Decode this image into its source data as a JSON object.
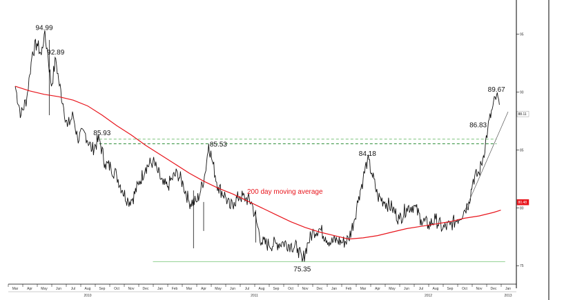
{
  "chart_data": {
    "type": "line",
    "title": "",
    "xlabel": "",
    "ylabel": "",
    "ylim": [
      74,
      97
    ],
    "grid": false,
    "y_ticks": [
      "95",
      "90",
      "85",
      "80",
      "75"
    ],
    "y_tick_values": [
      95,
      90,
      85,
      80,
      75
    ],
    "months": [
      "Mar",
      "Apr",
      "May",
      "Jun",
      "Jul",
      "Aug",
      "Sep",
      "Oct",
      "Nov",
      "Dec",
      "Jan",
      "Feb",
      "Mar",
      "Apr",
      "May",
      "Jun",
      "Jul",
      "Aug",
      "Sep",
      "Oct",
      "Nov",
      "Dec",
      "Jan",
      "Feb",
      "Mar",
      "Apr",
      "May",
      "Jun",
      "Jul",
      "Aug",
      "Sep",
      "Oct",
      "Nov",
      "Dec",
      "Jan"
    ],
    "years": [
      {
        "label": "2010",
        "at_month": 5
      },
      {
        "label": "2011",
        "at_month": 16.5
      },
      {
        "label": "2012",
        "at_month": 28.5
      },
      {
        "label": "2013",
        "at_month": 34
      }
    ],
    "series": [
      {
        "values_anchor": [
          [
            0,
            90.5
          ],
          [
            0.4,
            88.0
          ],
          [
            0.8,
            89.5
          ],
          [
            1.0,
            91.5
          ],
          [
            1.2,
            93.5
          ],
          [
            1.5,
            94.2
          ],
          [
            1.8,
            93.2
          ],
          [
            2.0,
            94.99
          ],
          [
            2.2,
            93.8
          ],
          [
            2.5,
            90.5
          ],
          [
            2.8,
            92.89
          ],
          [
            3.0,
            91.0
          ],
          [
            3.3,
            89.0
          ],
          [
            3.6,
            87.0
          ],
          [
            4.0,
            88.0
          ],
          [
            4.3,
            86.0
          ],
          [
            4.8,
            86.5
          ],
          [
            5.3,
            85.0
          ],
          [
            5.8,
            85.93
          ],
          [
            6.2,
            83.8
          ],
          [
            6.6,
            83.5
          ],
          [
            7.0,
            82.8
          ],
          [
            7.4,
            81.5
          ],
          [
            7.8,
            80.6
          ],
          [
            8.1,
            80.8
          ],
          [
            8.5,
            82.0
          ],
          [
            9.0,
            83.5
          ],
          [
            9.5,
            84.0
          ],
          [
            9.8,
            83.2
          ],
          [
            10.2,
            82.0
          ],
          [
            10.5,
            81.8
          ],
          [
            10.8,
            82.5
          ],
          [
            11.2,
            83.0
          ],
          [
            11.6,
            82.0
          ],
          [
            12.0,
            80.5
          ],
          [
            12.5,
            80.5
          ],
          [
            12.8,
            81.5
          ],
          [
            13.1,
            83.0
          ],
          [
            13.35,
            85.53
          ],
          [
            13.6,
            84.0
          ],
          [
            14.0,
            81.8
          ],
          [
            14.5,
            81.0
          ],
          [
            14.8,
            80.0
          ],
          [
            15.1,
            80.5
          ],
          [
            15.5,
            81.0
          ],
          [
            15.9,
            80.8
          ],
          [
            16.3,
            80.5
          ],
          [
            16.7,
            78.5
          ],
          [
            17.0,
            77.0
          ],
          [
            17.5,
            76.8
          ],
          [
            18.0,
            76.9
          ],
          [
            18.5,
            77.0
          ],
          [
            19.0,
            76.8
          ],
          [
            19.5,
            76.5
          ],
          [
            19.8,
            75.35
          ],
          [
            20.2,
            77.0
          ],
          [
            20.6,
            78.0
          ],
          [
            21.0,
            78.2
          ],
          [
            21.4,
            77.5
          ],
          [
            21.8,
            77.0
          ],
          [
            22.2,
            77.2
          ],
          [
            22.6,
            77.0
          ],
          [
            23.0,
            77.3
          ],
          [
            23.4,
            79.0
          ],
          [
            23.7,
            81.0
          ],
          [
            24.0,
            82.5
          ],
          [
            24.3,
            84.18
          ],
          [
            24.6,
            83.0
          ],
          [
            25.0,
            81.0
          ],
          [
            25.5,
            80.5
          ],
          [
            26.0,
            80.0
          ],
          [
            26.5,
            79.0
          ],
          [
            27.0,
            80.0
          ],
          [
            27.5,
            80.2
          ],
          [
            28.0,
            79.0
          ],
          [
            28.5,
            78.5
          ],
          [
            29.0,
            79.0
          ],
          [
            29.5,
            78.2
          ],
          [
            30.0,
            78.5
          ],
          [
            30.5,
            79.0
          ],
          [
            31.0,
            79.8
          ],
          [
            31.3,
            80.5
          ],
          [
            31.6,
            82.5
          ],
          [
            32.0,
            83.0
          ],
          [
            32.3,
            84.5
          ],
          [
            32.6,
            86.83
          ],
          [
            32.9,
            88.5
          ],
          [
            33.2,
            89.67
          ],
          [
            33.4,
            88.9
          ]
        ],
        "color": "#111111"
      },
      {
        "name": "200 day moving average",
        "values_anchor": [
          [
            0,
            90.5
          ],
          [
            1,
            90.1
          ],
          [
            2,
            89.8
          ],
          [
            3,
            89.6
          ],
          [
            4,
            89.3
          ],
          [
            5,
            88.8
          ],
          [
            6,
            88.0
          ],
          [
            7,
            87.1
          ],
          [
            8,
            86.3
          ],
          [
            9,
            85.4
          ],
          [
            10,
            84.6
          ],
          [
            11,
            83.8
          ],
          [
            12,
            83.0
          ],
          [
            13,
            82.3
          ],
          [
            14,
            81.7
          ],
          [
            15,
            81.2
          ],
          [
            16,
            80.6
          ],
          [
            17,
            80.0
          ],
          [
            18,
            79.4
          ],
          [
            19,
            78.8
          ],
          [
            20,
            78.3
          ],
          [
            21,
            77.9
          ],
          [
            22,
            77.6
          ],
          [
            23,
            77.3
          ],
          [
            24,
            77.4
          ],
          [
            25,
            77.6
          ],
          [
            26,
            77.9
          ],
          [
            27,
            78.2
          ],
          [
            28,
            78.4
          ],
          [
            29,
            78.6
          ],
          [
            30,
            78.8
          ],
          [
            31,
            79.1
          ],
          [
            32,
            79.3
          ],
          [
            33,
            79.6
          ],
          [
            33.5,
            79.8
          ]
        ],
        "color": "#e8141b"
      }
    ],
    "annotations": [
      {
        "text": "94.99",
        "x": 2.0,
        "y": 94.99
      },
      {
        "text": "92.89",
        "x": 2.8,
        "y": 92.89
      },
      {
        "text": "85.93",
        "x": 5.8,
        "y": 85.93
      },
      {
        "text": "85.53",
        "x": 13.35,
        "y": 85.53
      },
      {
        "text": "84.18",
        "x": 24.3,
        "y": 84.18
      },
      {
        "text": "75.35",
        "x": 19.8,
        "y": 75.35
      },
      {
        "text": "89.67",
        "x": 33.2,
        "y": 89.67
      },
      {
        "text": "86.83",
        "x": 32.6,
        "y": 86.83
      },
      {
        "text": "200 day moving average",
        "x": 16.0,
        "y": 81.2
      }
    ],
    "reference_lines": [
      {
        "y": 85.93,
        "x_from": 5.8,
        "x_to": 33.2,
        "style": "dashed",
        "color": "#7cc27c"
      },
      {
        "y": 85.53,
        "x_from": 5.8,
        "x_to": 33.2,
        "style": "dashed",
        "color": "#2f8f3a"
      },
      {
        "y": 75.35,
        "x_from": 9.5,
        "x_to": 33.8,
        "style": "solid",
        "color": "#8fcf8f"
      }
    ],
    "last_values": [
      {
        "text": "88.11",
        "y": 88.11,
        "bg": "#ffffff",
        "fg": "#111111"
      },
      {
        "text": "80.48",
        "y": 80.48,
        "bg": "#e8141b",
        "fg": "#ffffff"
      }
    ]
  }
}
